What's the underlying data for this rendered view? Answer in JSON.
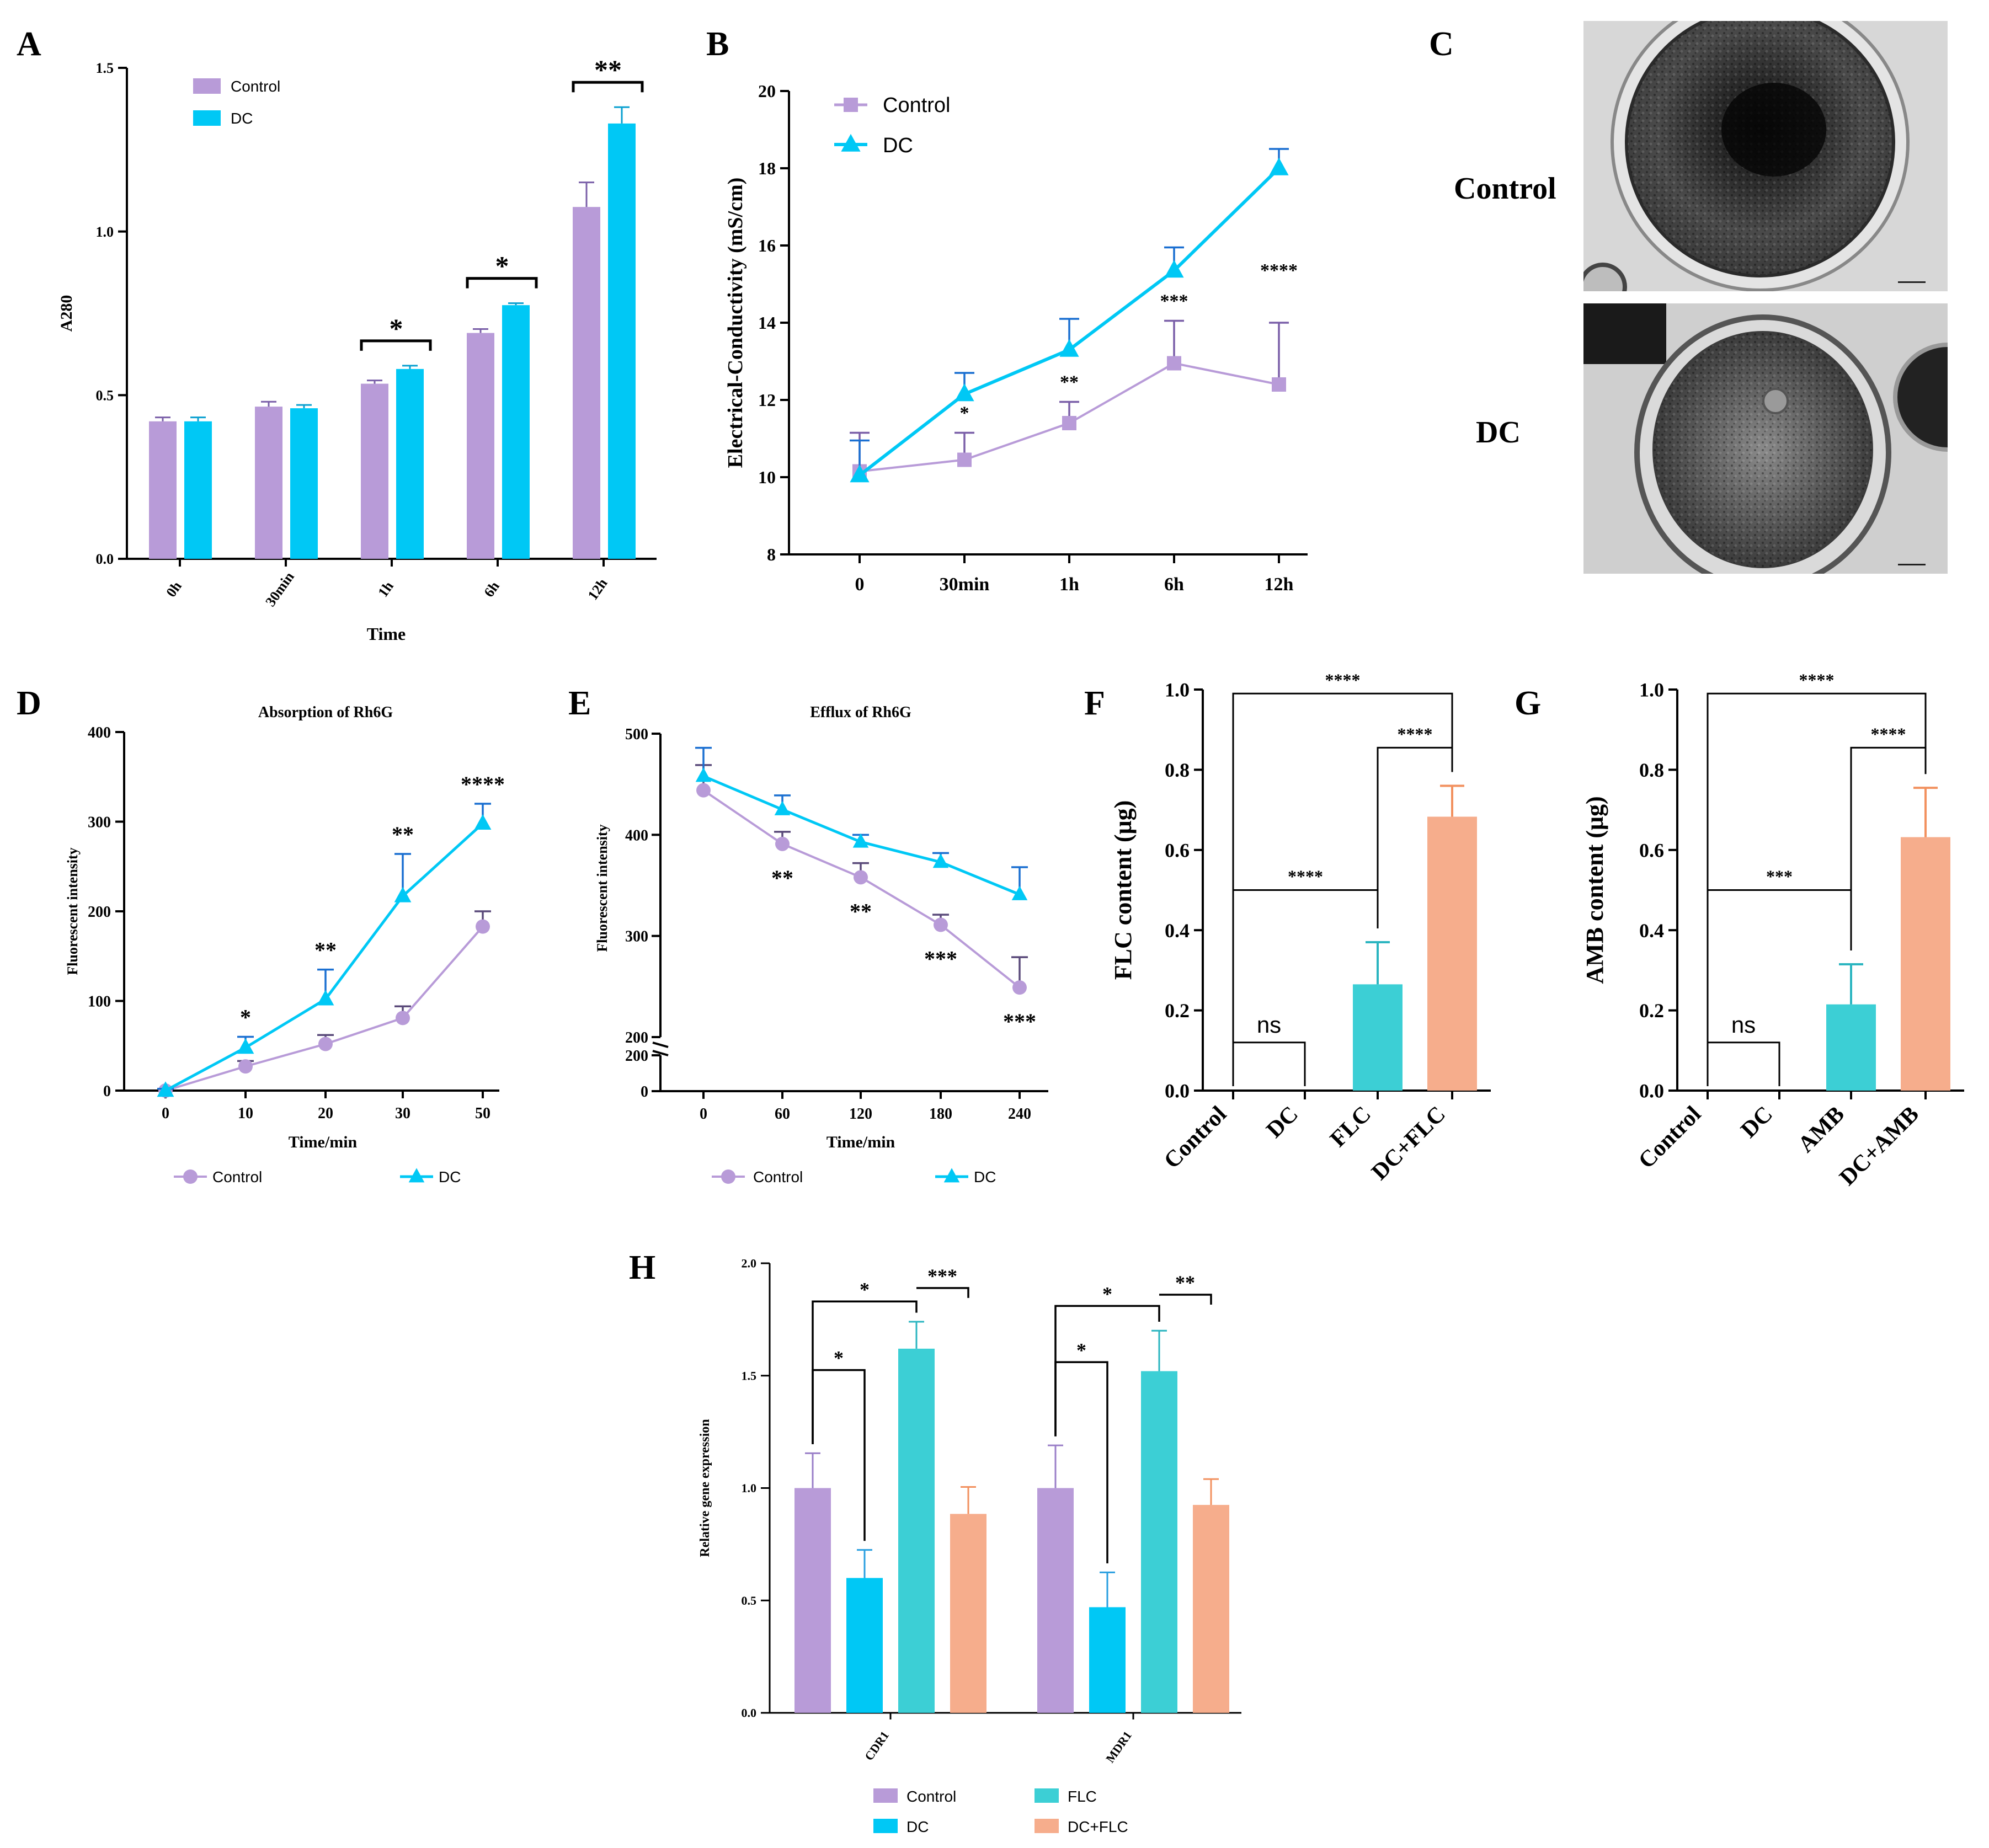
{
  "colors": {
    "control": "#b89bd8",
    "control_line": "#b89bd8",
    "dc": "#00c8f5",
    "flc": "#3ccfd5",
    "dcflc": "#f6ad8c",
    "err_dark": "#5a4a7a",
    "err_blue": "#1a6fd1"
  },
  "panels": {
    "A": "A",
    "B": "B",
    "C": "C",
    "D": "D",
    "E": "E",
    "F": "F",
    "G": "G",
    "H": "H"
  },
  "microscopy": {
    "label_top": "Control",
    "label_bottom": "DC"
  },
  "chart_data": [
    {
      "id": "A",
      "type": "bar",
      "title": "",
      "xlabel": "Time",
      "ylabel": "A280",
      "ylim": [
        0,
        1.5
      ],
      "yticks": [
        "0.0",
        "0.5",
        "1.0",
        "1.5"
      ],
      "categories": [
        "0h",
        "30min",
        "1h",
        "6h",
        "12h"
      ],
      "series": [
        {
          "name": "Control",
          "values": [
            0.42,
            0.465,
            0.535,
            0.69,
            1.075
          ],
          "errors": [
            0.012,
            0.015,
            0.01,
            0.012,
            0.075
          ]
        },
        {
          "name": "DC",
          "values": [
            0.42,
            0.46,
            0.58,
            0.775,
            1.33
          ],
          "errors": [
            0.012,
            0.01,
            0.01,
            0.006,
            0.05
          ]
        }
      ],
      "legend": [
        "Control",
        "DC"
      ],
      "significance": [
        {
          "category": "1h",
          "label": "*"
        },
        {
          "category": "6h",
          "label": "*"
        },
        {
          "category": "12h",
          "label": "**"
        }
      ]
    },
    {
      "id": "B",
      "type": "line",
      "title": "",
      "xlabel": "",
      "ylabel": "Electrical-Conductivity (mS/cm)",
      "ylim": [
        8,
        20
      ],
      "yticks": [
        "8",
        "10",
        "12",
        "14",
        "16",
        "18",
        "20"
      ],
      "categories": [
        "0",
        "30min",
        "1h",
        "6h",
        "12h"
      ],
      "series": [
        {
          "name": "Control",
          "values": [
            10.15,
            10.45,
            11.4,
            12.95,
            12.4
          ],
          "errors": [
            1.0,
            0.7,
            0.55,
            1.1,
            1.6
          ]
        },
        {
          "name": "DC",
          "values": [
            10.05,
            12.15,
            13.3,
            15.35,
            18.0
          ],
          "errors": [
            0.9,
            0.55,
            0.8,
            0.6,
            0.5
          ]
        }
      ],
      "legend": [
        "Control",
        "DC"
      ],
      "significance": [
        {
          "category": "30min",
          "label": "*"
        },
        {
          "category": "1h",
          "label": "**"
        },
        {
          "category": "6h",
          "label": "***"
        },
        {
          "category": "12h",
          "label": "****"
        }
      ]
    },
    {
      "id": "D",
      "type": "line",
      "title": "Absorption of Rh6G",
      "xlabel": "Time/min",
      "ylabel": "Fluorescent intensity",
      "ylim": [
        0,
        400
      ],
      "yticks": [
        "0",
        "100",
        "200",
        "300",
        "400"
      ],
      "x": [
        0,
        10,
        20,
        30,
        50
      ],
      "xticks": [
        "0",
        "10",
        "20",
        "30",
        "50"
      ],
      "series": [
        {
          "name": "Control",
          "values": [
            0,
            27,
            52,
            81,
            183
          ],
          "errors": [
            2,
            6,
            10,
            13,
            17
          ]
        },
        {
          "name": "DC",
          "values": [
            0,
            48,
            102,
            217,
            298
          ],
          "errors": [
            2,
            12,
            33,
            47,
            22
          ]
        }
      ],
      "legend": [
        "Control",
        "DC"
      ],
      "significance": [
        {
          "x": 10,
          "label": "*"
        },
        {
          "x": 20,
          "label": "**"
        },
        {
          "x": 30,
          "label": "**"
        },
        {
          "x": 50,
          "label": "****"
        }
      ]
    },
    {
      "id": "E",
      "type": "line",
      "title": "Efflux of Rh6G",
      "xlabel": "Time/min",
      "ylabel": "Fluorescent intensity",
      "ylim": [
        200,
        500
      ],
      "yticks_upper": [
        "200",
        "300",
        "400",
        "500"
      ],
      "yticks_lower": [
        "0",
        "200"
      ],
      "x": [
        0,
        60,
        120,
        180,
        240
      ],
      "xticks": [
        "0",
        "60",
        "120",
        "180",
        "240"
      ],
      "series": [
        {
          "name": "Control",
          "values": [
            444,
            391,
            358,
            311,
            249
          ],
          "errors": [
            25,
            12,
            14,
            10,
            30
          ]
        },
        {
          "name": "DC",
          "values": [
            458,
            425,
            393,
            373,
            341
          ],
          "errors": [
            28,
            14,
            7,
            9,
            27
          ]
        }
      ],
      "legend": [
        "Control",
        "DC"
      ],
      "significance": [
        {
          "x": 60,
          "label": "**"
        },
        {
          "x": 120,
          "label": "**"
        },
        {
          "x": 180,
          "label": "***"
        },
        {
          "x": 240,
          "label": "***"
        }
      ]
    },
    {
      "id": "F",
      "type": "bar",
      "title": "",
      "xlabel": "",
      "ylabel": "FLC content (μg)",
      "ylim": [
        0,
        1.0
      ],
      "yticks": [
        "0.0",
        "0.2",
        "0.4",
        "0.6",
        "0.8",
        "1.0"
      ],
      "categories": [
        "Control",
        "DC",
        "FLC",
        "DC+FLC"
      ],
      "values": [
        0,
        0,
        0.265,
        0.683
      ],
      "errors": [
        0,
        0,
        0.105,
        0.077
      ],
      "brackets": [
        {
          "from": "Control",
          "to": "DC",
          "label": "ns"
        },
        {
          "from": "Control",
          "to": "FLC",
          "label": "****"
        },
        {
          "from": "FLC",
          "to": "DC+FLC",
          "label": "****"
        },
        {
          "from": "Control",
          "to": "DC+FLC",
          "label": "****"
        }
      ]
    },
    {
      "id": "G",
      "type": "bar",
      "title": "",
      "xlabel": "",
      "ylabel": "AMB content (μg)",
      "ylim": [
        0,
        1.0
      ],
      "yticks": [
        "0.0",
        "0.2",
        "0.4",
        "0.6",
        "0.8",
        "1.0"
      ],
      "categories": [
        "Control",
        "DC",
        "AMB",
        "DC+AMB"
      ],
      "values": [
        0,
        0,
        0.215,
        0.632
      ],
      "errors": [
        0,
        0,
        0.1,
        0.123
      ],
      "brackets": [
        {
          "from": "Control",
          "to": "DC",
          "label": "ns"
        },
        {
          "from": "Control",
          "to": "AMB",
          "label": "***"
        },
        {
          "from": "AMB",
          "to": "DC+AMB",
          "label": "****"
        },
        {
          "from": "Control",
          "to": "DC+AMB",
          "label": "****"
        }
      ]
    },
    {
      "id": "H",
      "type": "bar",
      "title": "",
      "xlabel": "",
      "ylabel": "Relative gene expression",
      "ylim": [
        0,
        2.0
      ],
      "yticks": [
        "0.0",
        "0.5",
        "1.0",
        "1.5",
        "2.0"
      ],
      "categories": [
        "CDR1",
        "MDR1"
      ],
      "series": [
        {
          "name": "Control",
          "values": [
            1.0,
            1.0
          ],
          "errors": [
            0.155,
            0.19
          ]
        },
        {
          "name": "DC",
          "values": [
            0.6,
            0.47
          ],
          "errors": [
            0.125,
            0.155
          ]
        },
        {
          "name": "FLC",
          "values": [
            1.62,
            1.52
          ],
          "errors": [
            0.12,
            0.18
          ]
        },
        {
          "name": "DC+FLC",
          "values": [
            0.885,
            0.925
          ],
          "errors": [
            0.12,
            0.115
          ]
        }
      ],
      "legend": [
        "Control",
        "FLC",
        "DC",
        "DC+FLC"
      ],
      "brackets": [
        {
          "category": "CDR1",
          "from": "Control",
          "to": "DC",
          "label": "*"
        },
        {
          "category": "CDR1",
          "from": "Control",
          "to": "FLC",
          "label": "*"
        },
        {
          "category": "CDR1",
          "from": "FLC",
          "to": "DC+FLC",
          "label": "***"
        },
        {
          "category": "MDR1",
          "from": "Control",
          "to": "DC",
          "label": "*"
        },
        {
          "category": "MDR1",
          "from": "Control",
          "to": "FLC",
          "label": "*"
        },
        {
          "category": "MDR1",
          "from": "FLC",
          "to": "DC+FLC",
          "label": "**"
        }
      ]
    }
  ]
}
